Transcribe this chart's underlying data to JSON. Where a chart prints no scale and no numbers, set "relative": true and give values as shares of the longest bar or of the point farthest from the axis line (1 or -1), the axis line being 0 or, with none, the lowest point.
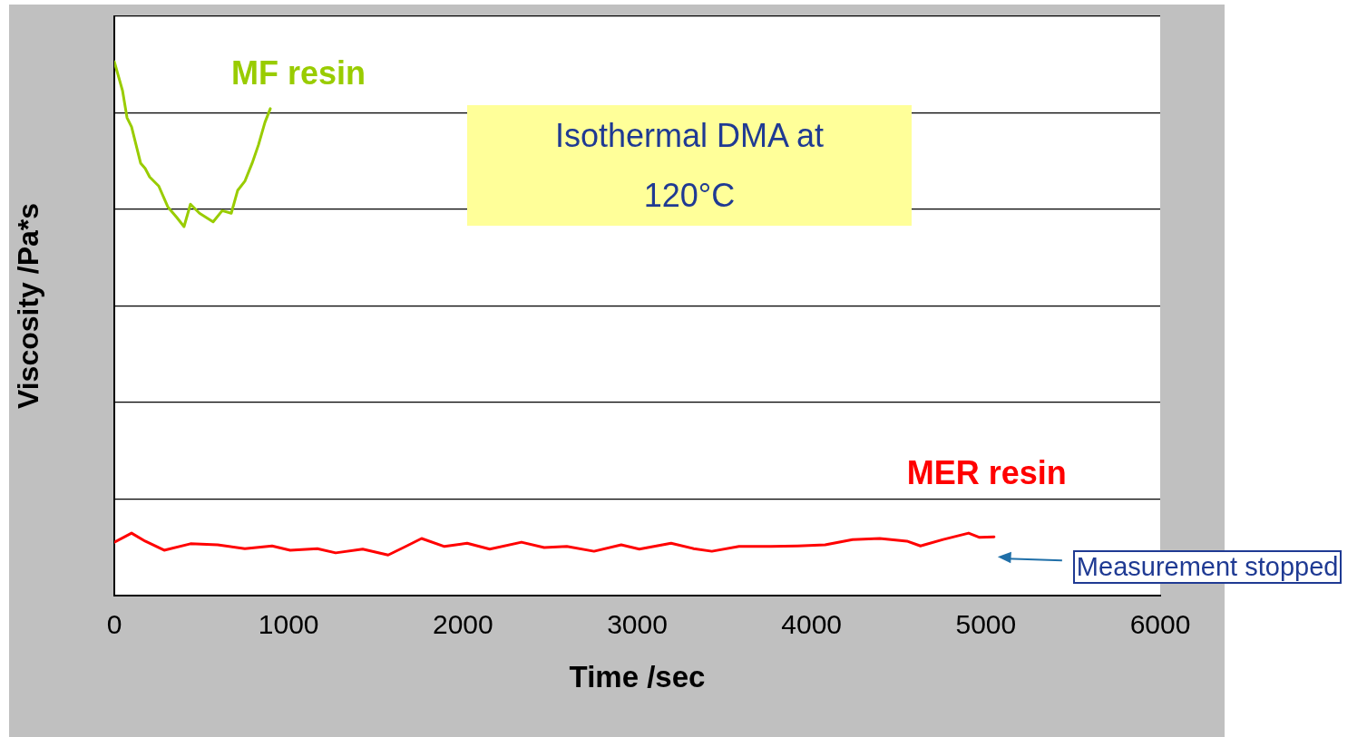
{
  "chart_data": {
    "type": "line",
    "xlabel": "Time /sec",
    "ylabel": "Viscosity /Pa*s",
    "relative": true,
    "grid": "y",
    "legend": false,
    "marker": "none",
    "line_style": "solid",
    "xlim": [
      0,
      6000
    ],
    "xticks": [
      0,
      1000,
      2000,
      3000,
      4000,
      5000,
      6000
    ],
    "annotations": [
      "Isothermal DMA at 120°C",
      "Measurement stopped"
    ],
    "series": [
      {
        "name": "MF resin",
        "color": "#99cc00",
        "x": [
          0,
          47,
          73,
          99,
          125,
          151,
          177,
          203,
          255,
          307,
          359,
          400,
          437,
          489,
          567,
          619,
          671,
          708,
          749,
          791,
          827,
          864,
          895
        ],
        "values": [
          1.0,
          0.946,
          0.895,
          0.878,
          0.844,
          0.81,
          0.8,
          0.784,
          0.767,
          0.728,
          0.708,
          0.691,
          0.733,
          0.716,
          0.7,
          0.721,
          0.716,
          0.759,
          0.776,
          0.81,
          0.844,
          0.886,
          0.912
        ]
      },
      {
        "name": "MER resin",
        "color": "#ff0000",
        "x": [
          0,
          99,
          177,
          286,
          437,
          593,
          749,
          905,
          1009,
          1165,
          1270,
          1425,
          1571,
          1659,
          1763,
          1894,
          2024,
          2154,
          2336,
          2466,
          2596,
          2752,
          2908,
          3012,
          3194,
          3324,
          3428,
          3584,
          3766,
          3922,
          4078,
          4235,
          4391,
          4547,
          4625,
          4755,
          4901,
          4964,
          5047
        ],
        "values": [
          0.1,
          0.117,
          0.102,
          0.085,
          0.097,
          0.095,
          0.088,
          0.093,
          0.085,
          0.088,
          0.08,
          0.087,
          0.076,
          0.09,
          0.107,
          0.092,
          0.098,
          0.087,
          0.1,
          0.09,
          0.092,
          0.083,
          0.095,
          0.087,
          0.098,
          0.088,
          0.083,
          0.092,
          0.092,
          0.093,
          0.095,
          0.105,
          0.107,
          0.102,
          0.093,
          0.105,
          0.117,
          0.109,
          0.11
        ]
      }
    ]
  }
}
